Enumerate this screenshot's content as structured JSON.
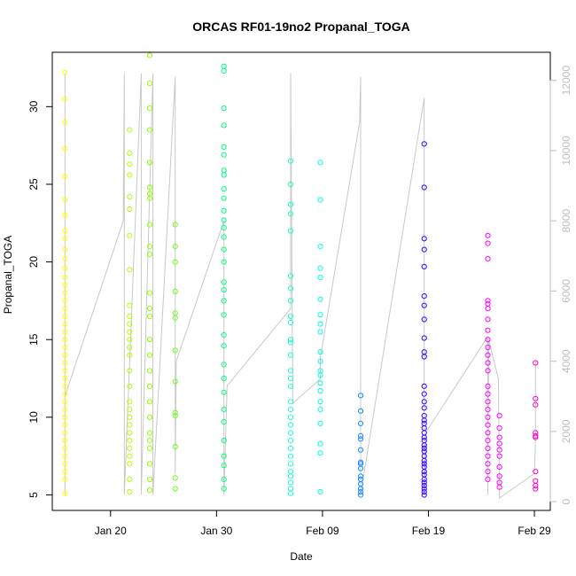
{
  "chart_data": {
    "type": "scatter",
    "title": "ORCAS RF01-19no2 Propanal_TOGA",
    "xlabel": "Date",
    "ylabel": "Propanal_TOGA",
    "x_ticks": [
      "Jan 20",
      "Jan 30",
      "Feb 09",
      "Feb 19",
      "Feb 29"
    ],
    "x_tick_values": [
      20,
      30,
      40,
      50,
      60
    ],
    "xlim": [
      14.5,
      61.5
    ],
    "y_ticks": [
      "5",
      "10",
      "15",
      "20",
      "25",
      "30"
    ],
    "y_tick_values": [
      5,
      10,
      15,
      20,
      25,
      30
    ],
    "ylim": [
      4,
      33.5
    ],
    "y2_ticks": [
      "0",
      "2000",
      "4000",
      "6000",
      "8000",
      "10000",
      "12000"
    ],
    "y2_tick_values": [
      0,
      2000,
      4000,
      6000,
      8000,
      10000,
      12000
    ],
    "y2lim": [
      -250,
      12800
    ],
    "grid": false,
    "colors": {
      "axis": "#000000",
      "right_axis": "#bdbdbd",
      "altitude_line": "#c8c8c8"
    },
    "series": [
      {
        "color": "#ffff00",
        "x": [
          15.7,
          15.7,
          15.7,
          15.7,
          15.7,
          15.7,
          15.7,
          15.7,
          15.7,
          15.7,
          15.7,
          15.7,
          15.7,
          15.7,
          15.7,
          15.7,
          15.7,
          15.7,
          15.7,
          15.7,
          15.7,
          15.7,
          15.7,
          15.7,
          15.7,
          15.7,
          15.7,
          15.7,
          15.7,
          15.7,
          15.7,
          15.7,
          15.7,
          15.7,
          15.7,
          15.7,
          15.7,
          15.7,
          15.7,
          15.7
        ],
        "y": [
          32.2,
          30.5,
          29.0,
          27.3,
          25.5,
          24.0,
          23.0,
          22.0,
          21.5,
          20.8,
          20.2,
          19.6,
          19.0,
          18.5,
          18.0,
          17.5,
          17.0,
          16.5,
          16.0,
          15.5,
          15.0,
          14.5,
          14.0,
          13.5,
          13.0,
          12.5,
          12.0,
          11.5,
          11.0,
          10.5,
          10.0,
          9.5,
          9.0,
          8.5,
          8.0,
          7.5,
          7.0,
          6.5,
          6.0,
          5.1
        ]
      },
      {
        "color": "#b2ff00",
        "x": [
          21.8,
          21.8,
          21.8,
          21.8,
          21.8,
          21.8,
          21.8,
          21.8,
          21.8,
          21.8,
          21.8,
          21.8,
          21.8,
          21.8,
          21.8,
          21.8,
          21.8,
          21.8,
          21.8,
          21.8,
          21.8,
          21.8,
          21.8,
          21.8,
          21.8,
          21.8,
          21.8,
          21.8
        ],
        "y": [
          28.5,
          27.0,
          26.3,
          25.6,
          24.2,
          23.4,
          21.7,
          19.5,
          17.2,
          16.5,
          16.0,
          15.5,
          15.0,
          14.5,
          14.0,
          13.0,
          12.0,
          11.0,
          10.5,
          10.0,
          9.5,
          9.0,
          8.5,
          8.0,
          7.5,
          7.0,
          6.0,
          5.2
        ]
      },
      {
        "color": "#8cff00",
        "x": [
          23.7,
          23.7,
          23.7,
          23.7,
          23.7,
          23.7,
          23.7,
          23.7,
          23.7,
          23.7,
          23.7,
          23.7,
          23.7,
          23.7,
          23.7,
          23.7,
          23.7,
          23.7,
          23.7,
          23.7,
          23.7,
          23.7,
          23.7,
          23.7,
          23.7,
          23.7
        ],
        "y": [
          33.3,
          31.5,
          29.9,
          28.5,
          26.4,
          24.8,
          24.4,
          24.1,
          22.4,
          21.0,
          20.5,
          18.0,
          17.0,
          16.5,
          15.0,
          14.0,
          13.0,
          12.0,
          11.0,
          10.0,
          9.0,
          8.5,
          8.0,
          7.0,
          6.0,
          5.3
        ]
      },
      {
        "color": "#6cff1a",
        "x": [
          26.1,
          26.1,
          26.1,
          26.1,
          26.1,
          26.1,
          26.1,
          26.1,
          26.1,
          26.1,
          26.1,
          26.1,
          26.1
        ],
        "y": [
          22.4,
          21.0,
          20.0,
          18.1,
          16.7,
          16.4,
          14.3,
          12.3,
          10.3,
          10.1,
          8.1,
          6.1,
          5.4
        ]
      },
      {
        "color": "#00ff80",
        "x": [
          30.7,
          30.7,
          30.7,
          30.7,
          30.7,
          30.7,
          30.7,
          30.7,
          30.7,
          30.7,
          30.7,
          30.7,
          30.7,
          30.7,
          30.7,
          30.7,
          30.7,
          30.7,
          30.7,
          30.7,
          30.7,
          30.7,
          30.7,
          30.7,
          30.7,
          30.7,
          30.7,
          30.7,
          30.7,
          30.7,
          30.7,
          30.7
        ],
        "y": [
          32.6,
          32.3,
          29.9,
          28.8,
          27.4,
          26.9,
          25.9,
          25.6,
          24.7,
          24.1,
          23.3,
          22.7,
          22.2,
          21.6,
          20.8,
          20.0,
          18.7,
          18.2,
          17.5,
          16.6,
          15.3,
          14.6,
          13.4,
          12.5,
          11.6,
          10.5,
          9.7,
          8.5,
          7.5,
          6.9,
          6.0,
          5.4
        ]
      },
      {
        "color": "#1affc6",
        "x": [
          37.0,
          37.0,
          37.0,
          37.0,
          37.0,
          37.0,
          37.0,
          37.0,
          37.0,
          37.0,
          37.0,
          37.0,
          37.0,
          37.0,
          37.0,
          37.0,
          37.0,
          37.0,
          37.0,
          37.0,
          37.0,
          37.0,
          37.0,
          37.0,
          37.0,
          37.0,
          37.0,
          37.0,
          37.0,
          37.0
        ],
        "y": [
          26.5,
          25.0,
          23.7,
          23.1,
          22.0,
          19.1,
          18.3,
          17.5,
          16.5,
          16.1,
          15.0,
          14.8,
          14.0,
          13.0,
          12.5,
          12.0,
          11.0,
          10.5,
          10.0,
          9.5,
          9.0,
          8.5,
          8.0,
          7.5,
          7.0,
          6.5,
          6.2,
          5.8,
          5.4,
          5.1
        ]
      },
      {
        "color": "#00ffe5",
        "x": [
          39.8,
          39.8,
          39.8,
          39.8,
          39.8,
          39.8,
          39.8,
          39.8,
          39.8,
          39.8,
          39.8,
          39.8,
          39.8,
          39.8,
          39.8,
          39.8,
          39.8,
          39.8,
          39.8,
          39.8,
          39.8
        ],
        "y": [
          26.4,
          24.0,
          21.0,
          19.6,
          19.0,
          17.6,
          16.6,
          16.0,
          15.5,
          14.2,
          13.6,
          13.0,
          12.7,
          12.2,
          11.7,
          11.0,
          10.5,
          9.6,
          8.3,
          7.7,
          5.2
        ]
      },
      {
        "color": "#1a8cff",
        "x": [
          43.6,
          43.6,
          43.6,
          43.6,
          43.6,
          43.6,
          43.6,
          43.6,
          43.6,
          43.6,
          43.6,
          43.6,
          43.6,
          43.6,
          43.6
        ],
        "y": [
          11.4,
          10.4,
          9.6,
          8.8,
          8.6,
          7.9,
          7.1,
          7.0,
          6.7,
          6.2,
          6.0,
          5.7,
          5.4,
          5.2,
          5.0
        ]
      },
      {
        "color": "#3300ff",
        "x": [
          49.6,
          49.6,
          49.6,
          49.6,
          49.6,
          49.6,
          49.6,
          49.6,
          49.6,
          49.6,
          49.6,
          49.6,
          49.6,
          49.6,
          49.6,
          49.6,
          49.6,
          49.6,
          49.6,
          49.6,
          49.6,
          49.6,
          49.6,
          49.6,
          49.6,
          49.6,
          49.6,
          49.6,
          49.6,
          49.6,
          49.6,
          49.6,
          49.6,
          49.6,
          49.6,
          49.6,
          49.6
        ],
        "y": [
          27.6,
          24.8,
          21.5,
          20.8,
          19.7,
          17.8,
          17.2,
          16.3,
          15.1,
          14.2,
          13.9,
          12.0,
          11.5,
          11.0,
          10.6,
          10.1,
          9.8,
          9.6,
          9.3,
          9.0,
          8.7,
          8.5,
          8.2,
          8.0,
          7.8,
          7.5,
          7.2,
          7.0,
          6.8,
          6.5,
          6.3,
          6.0,
          5.8,
          5.6,
          5.4,
          5.2,
          5.0
        ]
      },
      {
        "color": "#ff00ff",
        "x": [
          55.6,
          55.6,
          55.6,
          55.6,
          55.6,
          55.6,
          55.6,
          55.6,
          55.6,
          55.6,
          55.6,
          55.6,
          55.6,
          55.6,
          55.6,
          55.6,
          55.6,
          55.6,
          55.6,
          55.6,
          55.6,
          55.6,
          55.6,
          55.6,
          55.6,
          55.6,
          56.7,
          56.7,
          56.7,
          56.7,
          56.7,
          56.7,
          56.7,
          56.7,
          56.7,
          56.7
        ],
        "y": [
          21.7,
          21.2,
          20.2,
          17.5,
          17.3,
          17.0,
          16.3,
          15.6,
          15.0,
          14.5,
          14.0,
          13.5,
          13.0,
          12.0,
          11.5,
          11.0,
          10.5,
          10.0,
          9.5,
          9.0,
          8.5,
          8.0,
          7.5,
          7.0,
          6.5,
          6.0,
          10.1,
          9.3,
          8.7,
          8.3,
          7.9,
          7.5,
          6.8,
          6.2,
          5.8,
          5.5
        ]
      },
      {
        "color": "#ff00c6",
        "x": [
          60.1,
          60.1,
          60.1,
          60.1,
          60.1,
          60.1,
          60.1,
          60.1,
          60.1,
          60.1
        ],
        "y": [
          13.5,
          11.2,
          10.8,
          9.0,
          8.8,
          8.7,
          6.5,
          5.9,
          5.6,
          5.4
        ]
      }
    ],
    "altitude_line": {
      "color": "#c8c8c8",
      "x": [
        15.7,
        15.7,
        15.7,
        21.2,
        21.3,
        21.3,
        22.9,
        22.9,
        24.0,
        24.0,
        26.1,
        26.1,
        26.2,
        30.7,
        30.7,
        31.0,
        37.0,
        37.0,
        37.2,
        39.8,
        39.8,
        43.5,
        43.6,
        43.6,
        49.6,
        49.6,
        49.8,
        55.6,
        55.6,
        55.7,
        56.6,
        56.7,
        56.7,
        60.0,
        60.1,
        60.1
      ],
      "y": [
        12200,
        200,
        3000,
        8000,
        12200,
        200,
        12200,
        200,
        12200,
        200,
        12100,
        800,
        4000,
        8000,
        200,
        3300,
        5500,
        12200,
        2800,
        3500,
        4100,
        10800,
        12100,
        200,
        11500,
        200,
        2000,
        4700,
        200,
        4600,
        3500,
        300,
        100,
        800,
        1800,
        4000
      ]
    }
  }
}
